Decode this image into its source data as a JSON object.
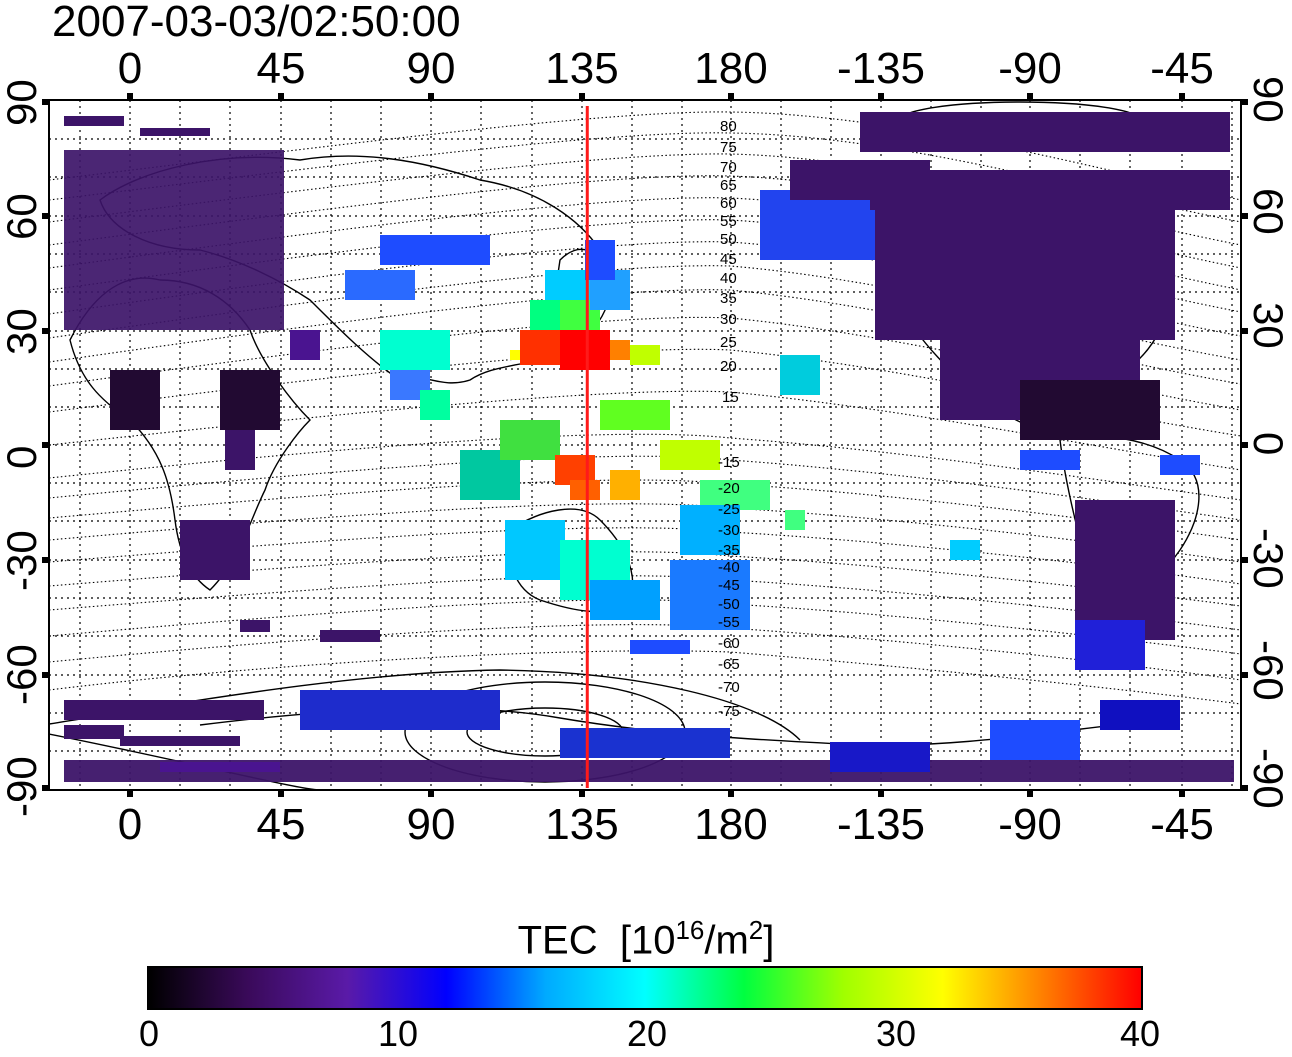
{
  "title": "2007-03-03/02:50:00",
  "lon_ticks": [
    "0",
    "45",
    "90",
    "135",
    "180",
    "-135",
    "-90",
    "-45"
  ],
  "lat_ticks": [
    "90",
    "60",
    "30",
    "0",
    "-30",
    "-60",
    "-90"
  ],
  "contour_labels_north": [
    "80",
    "75",
    "70",
    "65",
    "60",
    "55",
    "50",
    "45",
    "40",
    "35",
    "30",
    "25",
    "20",
    "15"
  ],
  "contour_labels_south": [
    "-15",
    "-20",
    "-25",
    "-30",
    "-35",
    "-40",
    "-45",
    "-50",
    "-55",
    "-60",
    "-65",
    "-70",
    "-75"
  ],
  "colorbar": {
    "title_main": "TEC",
    "title_units_pre": "[10",
    "title_exp1": "16",
    "title_units_mid": "/m",
    "title_exp2": "2",
    "title_units_post": "]",
    "ticks": [
      "0",
      "10",
      "20",
      "30",
      "40"
    ],
    "range": [
      0,
      40
    ]
  },
  "colors": {
    "marker_line": "#ff1a1a",
    "frame": "#000000",
    "colormap": [
      "#000000",
      "#3a0a5a",
      "#5a1aa8",
      "#0000ff",
      "#00aaff",
      "#00ffff",
      "#00ff40",
      "#a0ff00",
      "#ffff00",
      "#ff8000",
      "#ff0000"
    ]
  },
  "marker_longitude": 137
}
